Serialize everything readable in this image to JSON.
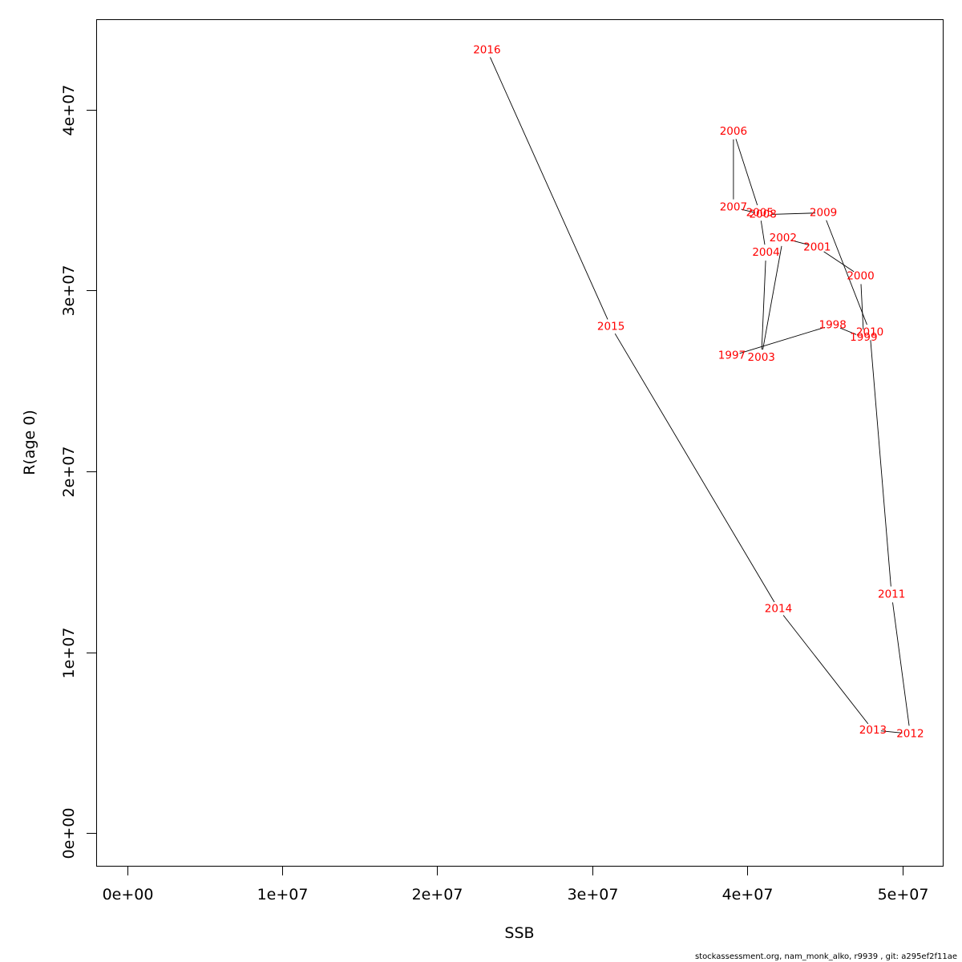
{
  "chart_data": {
    "type": "line",
    "title": "",
    "xlabel": "SSB",
    "ylabel": "R(age 0)",
    "xlim": [
      -2000000,
      52600000
    ],
    "ylim": [
      -1800000,
      45000000
    ],
    "x_ticks": [
      {
        "value": 0,
        "label": "0e+00"
      },
      {
        "value": 10000000,
        "label": "1e+07"
      },
      {
        "value": 20000000,
        "label": "2e+07"
      },
      {
        "value": 30000000,
        "label": "3e+07"
      },
      {
        "value": 40000000,
        "label": "4e+07"
      },
      {
        "value": 50000000,
        "label": "5e+07"
      }
    ],
    "y_ticks": [
      {
        "value": 0,
        "label": "0e+00"
      },
      {
        "value": 10000000,
        "label": "1e+07"
      },
      {
        "value": 20000000,
        "label": "2e+07"
      },
      {
        "value": 30000000,
        "label": "3e+07"
      },
      {
        "value": 40000000,
        "label": "4e+07"
      }
    ],
    "label_color": "#ff0000",
    "line_color": "#000000",
    "points": [
      {
        "year": "1997",
        "ssb": 39000000,
        "rec": 26400000
      },
      {
        "year": "1998",
        "ssb": 45500000,
        "rec": 28100000
      },
      {
        "year": "1999",
        "ssb": 47500000,
        "rec": 27400000
      },
      {
        "year": "2000",
        "ssb": 47300000,
        "rec": 30800000
      },
      {
        "year": "2001",
        "ssb": 44500000,
        "rec": 32400000
      },
      {
        "year": "2002",
        "ssb": 42300000,
        "rec": 32900000
      },
      {
        "year": "2003",
        "ssb": 40900000,
        "rec": 26300000
      },
      {
        "year": "2004",
        "ssb": 41200000,
        "rec": 32100000
      },
      {
        "year": "2005",
        "ssb": 40800000,
        "rec": 34300000
      },
      {
        "year": "2006",
        "ssb": 39100000,
        "rec": 38800000
      },
      {
        "year": "2007",
        "ssb": 39100000,
        "rec": 34600000
      },
      {
        "year": "2008",
        "ssb": 41000000,
        "rec": 34200000
      },
      {
        "year": "2009",
        "ssb": 44900000,
        "rec": 34300000
      },
      {
        "year": "2010",
        "ssb": 47900000,
        "rec": 27700000
      },
      {
        "year": "2011",
        "ssb": 49300000,
        "rec": 13200000
      },
      {
        "year": "2012",
        "ssb": 50500000,
        "rec": 5500000
      },
      {
        "year": "2013",
        "ssb": 48100000,
        "rec": 5700000
      },
      {
        "year": "2014",
        "ssb": 42000000,
        "rec": 12400000
      },
      {
        "year": "2015",
        "ssb": 31200000,
        "rec": 28000000
      },
      {
        "year": "2016",
        "ssb": 23200000,
        "rec": 43300000
      }
    ]
  },
  "footer": {
    "text": "stockassessment.org, nam_monk_alko, r9939 , git: a295ef2f11ae"
  }
}
